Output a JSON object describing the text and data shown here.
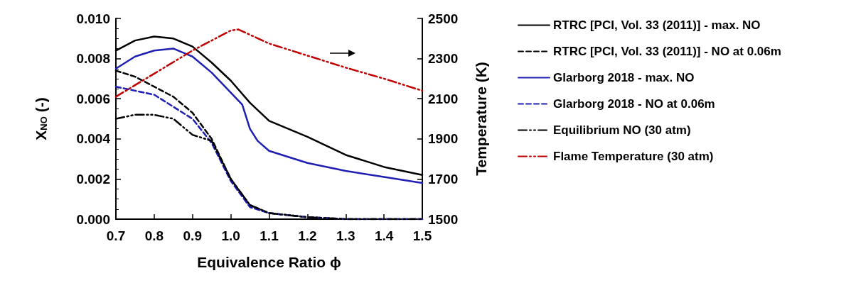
{
  "chart_data": {
    "type": "line",
    "xlabel": "Equivalence Ratio ϕ",
    "ylabel": "X$_{NO}$ (-)",
    "y2label": "Temperature (K)",
    "xlim": [
      0.7,
      1.5
    ],
    "xticks": [
      0.7,
      0.8,
      0.9,
      {
        "value": 1,
        "label": "1.0"
      },
      1.1,
      1.2,
      1.3,
      1.4,
      1.5
    ],
    "ylim": [
      0,
      0.01
    ],
    "yticks": [
      {
        "value": 0,
        "label": "0.000"
      },
      {
        "value": 0.002,
        "label": "0.002"
      },
      {
        "value": 0.004,
        "label": "0.004"
      },
      {
        "value": 0.006,
        "label": "0.006"
      },
      {
        "value": 0.008,
        "label": "0.008"
      },
      {
        "value": 0.01,
        "label": "0.010"
      }
    ],
    "y2lim": [
      1500,
      2500
    ],
    "y2ticks": [
      1500,
      1700,
      1900,
      2100,
      2300,
      2500
    ],
    "grid": false,
    "legend": "right",
    "marker": "none",
    "series": [
      {
        "name": "RTRC [PCI, Vol. 33 (2011)] - max. NO",
        "color": "#000000",
        "line_style": "solid",
        "x": [
          0.7,
          0.75,
          0.8,
          0.85,
          0.9,
          0.95,
          1.0,
          1.05,
          1.1,
          1.2,
          1.3,
          1.4,
          1.5
        ],
        "values": [
          0.0084,
          0.0089,
          0.0091,
          0.009,
          0.0086,
          0.0078,
          0.0069,
          0.0058,
          0.0049,
          0.0041,
          0.0032,
          0.0026,
          0.0022
        ]
      },
      {
        "name": "RTRC [PCI, Vol. 33 (2011)] - NO at 0.06m",
        "color": "#000000",
        "line_style": "dashed",
        "x": [
          0.7,
          0.75,
          0.8,
          0.85,
          0.9,
          0.95,
          1.0,
          1.05,
          1.1,
          1.2,
          1.3,
          1.5
        ],
        "values": [
          0.0074,
          0.0071,
          0.0066,
          0.0061,
          0.0053,
          0.004,
          0.002,
          0.0007,
          0.0003,
          0.0001,
          0,
          0
        ]
      },
      {
        "name": "Glarborg 2018 - max. NO",
        "color": "#1f1fb4",
        "line_style": "solid",
        "x": [
          0.7,
          0.75,
          0.8,
          0.85,
          0.9,
          0.95,
          1.0,
          1.03,
          1.05,
          1.07,
          1.1,
          1.2,
          1.3,
          1.4,
          1.5
        ],
        "values": [
          0.0075,
          0.0081,
          0.0084,
          0.0085,
          0.0081,
          0.0073,
          0.0063,
          0.0057,
          0.0045,
          0.0039,
          0.0034,
          0.0028,
          0.0024,
          0.0021,
          0.0018
        ]
      },
      {
        "name": "Glarborg 2018 - NO at 0.06m",
        "color": "#1f1fb4",
        "line_style": "dashed",
        "x": [
          0.7,
          0.75,
          0.8,
          0.85,
          0.9,
          0.95,
          1.0,
          1.05,
          1.1,
          1.2,
          1.3,
          1.5
        ],
        "values": [
          0.0066,
          0.0064,
          0.0062,
          0.0056,
          0.005,
          0.0038,
          0.0019,
          0.0006,
          0.0003,
          0.0001,
          0,
          0
        ]
      },
      {
        "name": "Equilibrium NO (30 atm)",
        "color": "#000000",
        "line_style": "dotted",
        "x": [
          0.7,
          0.75,
          0.8,
          0.85,
          0.9,
          0.95,
          1.0,
          1.05,
          1.1,
          1.2,
          1.3,
          1.5
        ],
        "values": [
          0.005,
          0.0052,
          0.0052,
          0.005,
          0.0042,
          0.0039,
          0.002,
          0.0007,
          0.0003,
          0.0001,
          0,
          0
        ]
      },
      {
        "name": "Flame Temperature (30 atm)",
        "color": "#c00000",
        "line_style": "dotted",
        "axis": "y2",
        "x": [
          0.7,
          0.8,
          0.9,
          1.0,
          1.02,
          1.1,
          1.2,
          1.3,
          1.4,
          1.5
        ],
        "values": [
          2110,
          2225,
          2340,
          2440,
          2445,
          2375,
          2315,
          2255,
          2200,
          2140
        ]
      }
    ]
  }
}
